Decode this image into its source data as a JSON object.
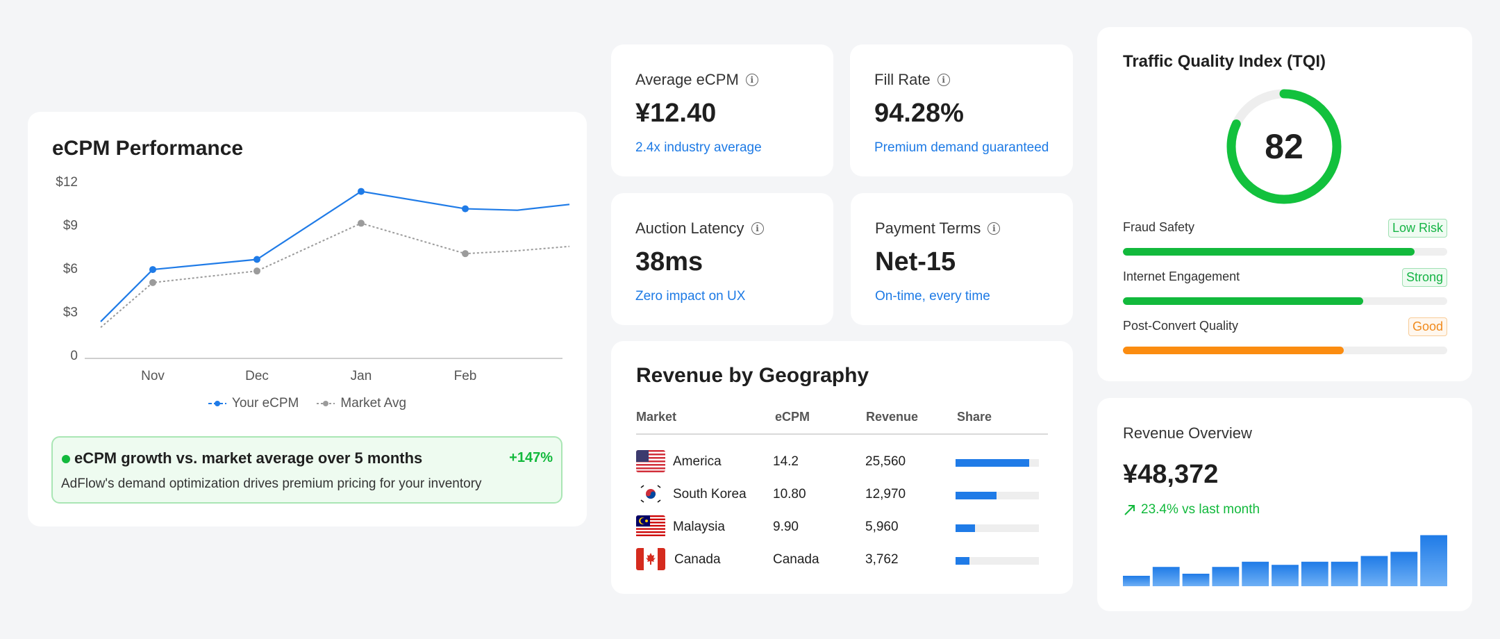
{
  "ecpm": {
    "title": "eCPM Performance",
    "legend_series": "Your eCPM",
    "legend_market": "Market Avg",
    "growth_title": "eCPM growth vs. market average over 5 months",
    "growth_pct": "+147%",
    "growth_desc": "AdFlow's demand optimization drives premium pricing for your inventory"
  },
  "chart_data": {
    "type": "line",
    "y_ticks": [
      "0",
      "$3",
      "$6",
      "$9",
      "$12"
    ],
    "x_ticks": [
      "Nov",
      "Dec",
      "Jan",
      "Feb"
    ],
    "ylim": [
      0,
      12
    ],
    "xlim": [
      0,
      4.5
    ],
    "grid": false,
    "legend_position": "bottom",
    "series": [
      {
        "name": "Your eCPM",
        "color": "#1f7be7",
        "style": "solid",
        "x": [
          0,
          0.5,
          1.5,
          2.5,
          3.5,
          4.0,
          4.5
        ],
        "y": [
          2.3,
          5.9,
          6.6,
          11.3,
          10.1,
          10.0,
          10.4
        ],
        "markers": [
          false,
          true,
          true,
          true,
          true,
          false,
          false
        ]
      },
      {
        "name": "Market Avg",
        "color": "#9b9b9b",
        "style": "dotted",
        "x": [
          0,
          0.5,
          1.5,
          2.5,
          3.5,
          4.0,
          4.5
        ],
        "y": [
          1.9,
          5.0,
          5.8,
          9.1,
          7.0,
          7.2,
          7.5
        ],
        "markers": [
          false,
          true,
          true,
          true,
          true,
          false,
          false
        ]
      }
    ]
  },
  "metrics": [
    {
      "label": "Average eCPM",
      "value": "¥12.40",
      "sub": "2.4x industry average"
    },
    {
      "label": "Fill Rate",
      "value": "94.28%",
      "sub": "Premium demand guaranteed"
    },
    {
      "label": "Auction Latency",
      "value": "38ms",
      "sub": "Zero impact on UX"
    },
    {
      "label": "Payment Terms",
      "value": "Net-15",
      "sub": "On-time, every time"
    }
  ],
  "geo": {
    "title": "Revenue by Geography",
    "headers": {
      "market": "Market",
      "ecpm": "eCPM",
      "revenue": "Revenue",
      "share": "Share"
    },
    "rows": [
      {
        "market": "America",
        "ecpm": "14.2",
        "revenue": "25,560",
        "share": 0.88,
        "flag": "us-flag-icon"
      },
      {
        "market": "South Korea",
        "ecpm": "10.80",
        "revenue": "12,970",
        "share": 0.49,
        "flag": "kr-flag-icon"
      },
      {
        "market": "Malaysia",
        "ecpm": "9.90",
        "revenue": "5,960",
        "share": 0.23,
        "flag": "my-flag-icon"
      },
      {
        "market": "Canada",
        "ecpm": "Canada",
        "revenue": "3,762",
        "share": 0.17,
        "flag": "ca-flag-icon"
      }
    ]
  },
  "tqi": {
    "title": "Traffic Quality Index (TQI)",
    "score": "82",
    "score_value": 82,
    "rows": [
      {
        "label": "Fraud Safety",
        "badge": "Low Risk",
        "badge_color": "green",
        "fill": 0.9,
        "color": "#12b93c"
      },
      {
        "label": "Internet Engagement",
        "badge": "Strong",
        "badge_color": "green",
        "fill": 0.74,
        "color": "#12b93c"
      },
      {
        "label": "Post-Convert Quality",
        "badge": "Good",
        "badge_color": "orange",
        "fill": 0.68,
        "color": "#fb8c10"
      }
    ]
  },
  "revenue": {
    "title": "Revenue Overview",
    "value": "¥48,372",
    "change": "23.4% vs last month",
    "bars": [
      0.2,
      0.37,
      0.24,
      0.37,
      0.47,
      0.41,
      0.47,
      0.47,
      0.58,
      0.66,
      0.98
    ]
  }
}
